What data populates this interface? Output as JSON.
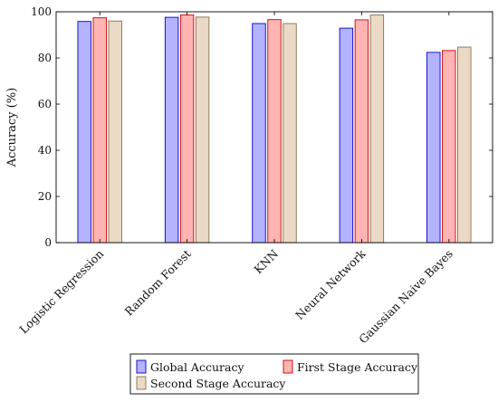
{
  "chart_data": {
    "type": "bar",
    "title": "",
    "xlabel": "",
    "ylabel": "Accuracy (%)",
    "ylim": [
      0,
      100
    ],
    "yticks": [
      0,
      20,
      40,
      60,
      80,
      100
    ],
    "grid": false,
    "legend_position": "bottom",
    "categories": [
      "Logistic Regression",
      "Random Forest",
      "KNN",
      "Neural Network",
      "Gaussian Naive Bayes"
    ],
    "series": [
      {
        "name": "Global Accuracy",
        "values": [
          95.8,
          97.6,
          94.9,
          92.9,
          82.4
        ],
        "fill": "#b3b3ff",
        "stroke": "#0000cc"
      },
      {
        "name": "First Stage Accuracy",
        "values": [
          97.4,
          98.6,
          96.6,
          96.5,
          83.2
        ],
        "fill": "#ffb3b3",
        "stroke": "#cc0000"
      },
      {
        "name": "Second Stage Accuracy",
        "values": [
          96.0,
          97.7,
          94.9,
          98.6,
          84.7
        ],
        "fill": "#ead9c4",
        "stroke": "#8a6f4e"
      }
    ]
  }
}
